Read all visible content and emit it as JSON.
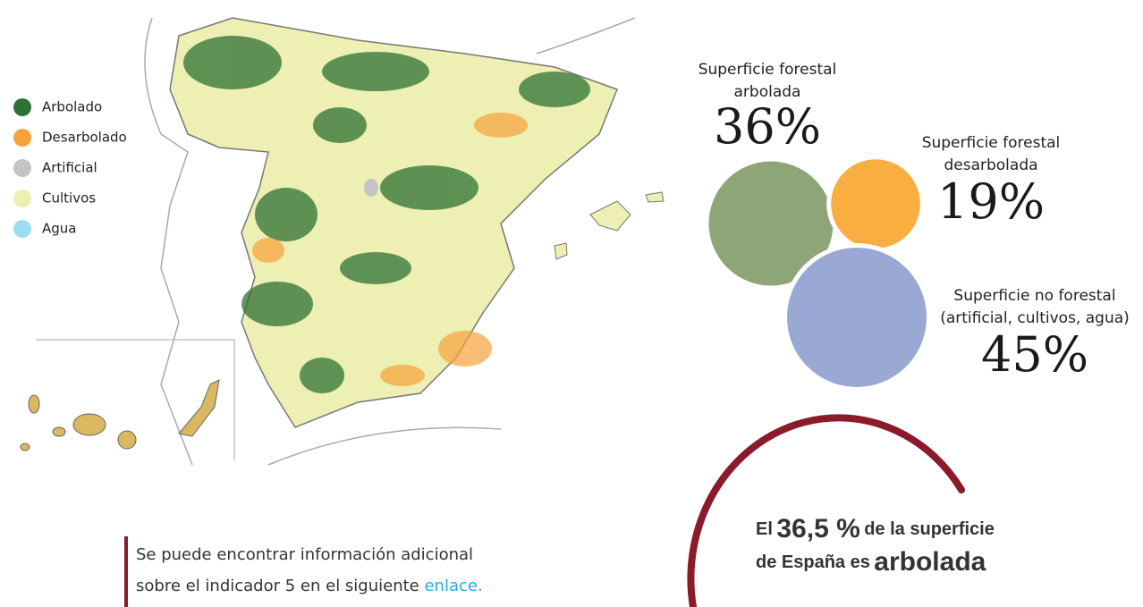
{
  "legend": [
    {
      "label": "Arbolado",
      "color": "#2e7134"
    },
    {
      "label": "Desarbolado",
      "color": "#f7a33a"
    },
    {
      "label": "Artificial",
      "color": "#c4c4c4"
    },
    {
      "label": "Cultivos",
      "color": "#eeefb2"
    },
    {
      "label": "Agua",
      "color": "#9fdcf2"
    }
  ],
  "bubbles": [
    {
      "label_lines": [
        "Superficie forestal",
        "arbolada"
      ],
      "value": 36,
      "value_label": "36%",
      "color": "#8ea577"
    },
    {
      "label_lines": [
        "Superficie forestal",
        "desarbolada"
      ],
      "value": 19,
      "value_label": "19%",
      "color": "#f9ae3f"
    },
    {
      "label_lines": [
        "Superficie no forestal",
        "(artificial, cultivos, agua)"
      ],
      "value": 45,
      "value_label": "45%",
      "color": "#9aa8d4"
    }
  ],
  "note": {
    "text_lines": [
      "Se puede encontrar información adicional",
      "sobre el indicador 5 en el siguiente"
    ],
    "link": "enlace."
  },
  "highlight": {
    "parts": [
      "El",
      "36,5 %",
      "de la superficie",
      "de España es",
      "arbolada"
    ]
  }
}
